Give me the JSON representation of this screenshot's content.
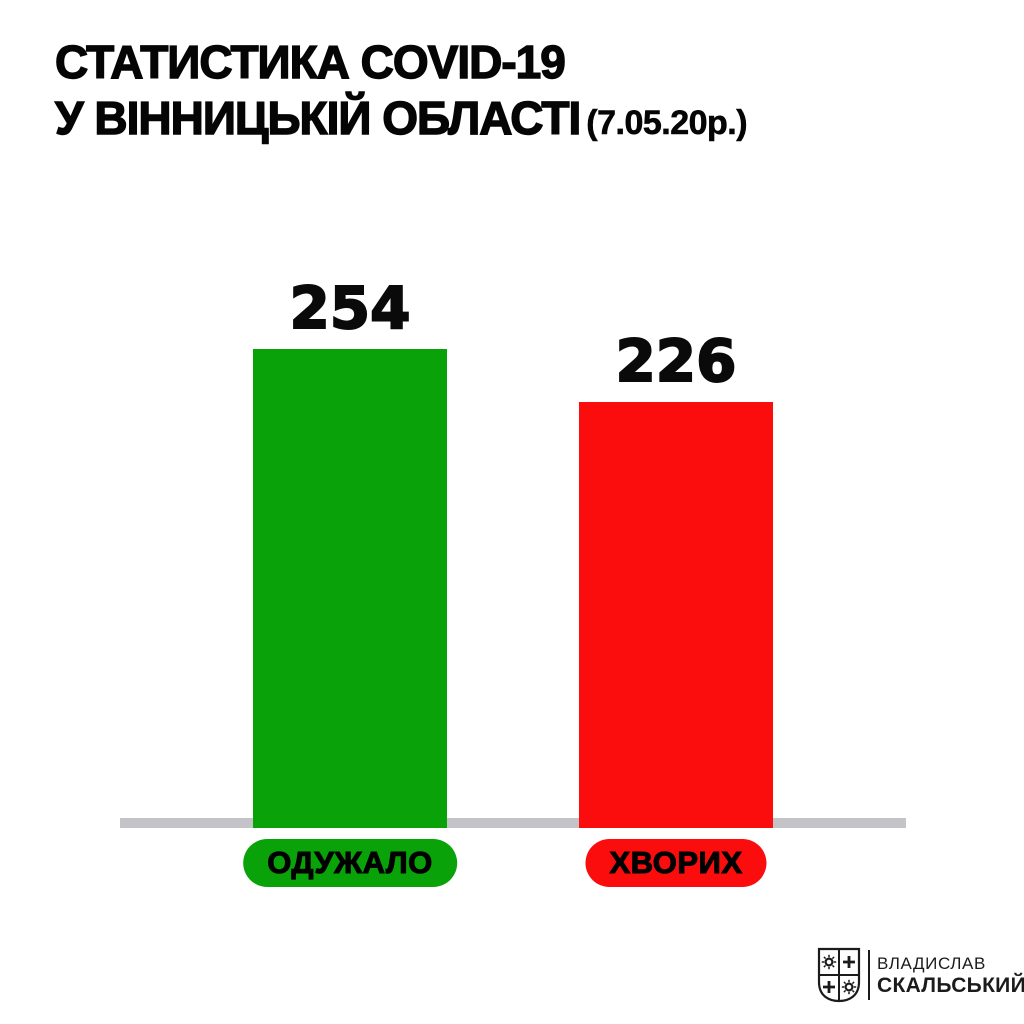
{
  "header": {
    "title_line1": "СТАТИСТИКА COVID-19",
    "title_line2": "У ВІННИЦЬКІЙ ОБЛАСТІ",
    "date": "(7.05.20р.)"
  },
  "chart_data": {
    "type": "bar",
    "title": "СТАТИСТИКА COVID-19 У ВІННИЦЬКІЙ ОБЛАСТІ (7.05.20р.)",
    "categories": [
      "ОДУЖАЛО",
      "ХВОРИХ"
    ],
    "values": [
      254,
      226
    ],
    "value_labels": [
      "254",
      "226"
    ],
    "bar_colors": [
      "#09a309",
      "#fc0d0d"
    ],
    "xlabel": "",
    "ylabel": "",
    "grid": false,
    "legend_position": "pill-labels-below-axis",
    "baseline_color": "#c3c3c8"
  },
  "footer": {
    "brand_name_line1": "ВЛАДИСЛАВ",
    "brand_name_line2": "СКАЛЬСЬКИЙ"
  },
  "colors": {
    "recovered_green": "#09a309",
    "sick_red": "#fc0d0d",
    "axis_gray": "#c3c3c8",
    "text_black": "#050505",
    "logo_ink": "#1b1b1b"
  }
}
